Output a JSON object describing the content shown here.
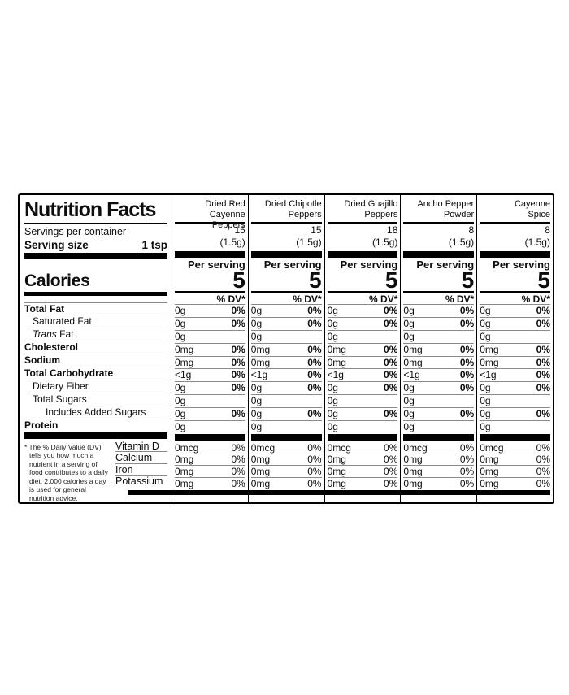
{
  "panel": {
    "title": "Nutrition Facts",
    "servings_per_container_label": "Servings per container",
    "serving_size_label": "Serving size",
    "serving_size_value": "1 tsp",
    "calories_label": "Calories",
    "per_serving_label": "Per serving",
    "percent_dv_header": "% DV*",
    "footnote": "* The % Daily Value (DV) tells you how much a nutrient in a serving of food contributes to a daily diet. 2,000 calories a day is used for general nutrition advice.",
    "colors": {
      "ink": "#0d0d0d",
      "hairline": "#8a8a8a",
      "background": "#ffffff"
    }
  },
  "nutrient_rows": [
    {
      "label": "Total Fat",
      "bold": true,
      "indent": 0,
      "rule_indent": 0
    },
    {
      "label": "Saturated Fat",
      "bold": false,
      "indent": 10,
      "rule_indent": 9
    },
    {
      "label_italic": "Trans",
      "label": " Fat",
      "bold": false,
      "indent": 10,
      "rule_indent": 9
    },
    {
      "label": "Cholesterol",
      "bold": true,
      "indent": 0,
      "rule_indent": 0
    },
    {
      "label": "Sodium",
      "bold": true,
      "indent": 0,
      "rule_indent": 0
    },
    {
      "label": "Total Carbohydrate",
      "bold": true,
      "indent": 0,
      "rule_indent": 0
    },
    {
      "label": "Dietary Fiber",
      "bold": false,
      "indent": 10,
      "rule_indent": 9
    },
    {
      "label": "Total Sugars",
      "bold": false,
      "indent": 10,
      "rule_indent": 9
    },
    {
      "label": "Includes Added Sugars",
      "bold": false,
      "indent": 26,
      "rule_indent": 26
    },
    {
      "label": "Protein",
      "bold": true,
      "indent": 0,
      "rule_indent": 0
    }
  ],
  "vitamin_labels": [
    "Vitamin D",
    "Calcium",
    "Iron",
    "Potassium"
  ],
  "products": [
    {
      "name": "Dried Red\nCayenne Peppers",
      "servings": "15",
      "serving_weight": "(1.5g)",
      "calories": "5",
      "values": [
        {
          "amount": "0g",
          "dv": "0%"
        },
        {
          "amount": "0g",
          "dv": "0%"
        },
        {
          "amount": "0g",
          "dv": null
        },
        {
          "amount": "0mg",
          "dv": "0%"
        },
        {
          "amount": "0mg",
          "dv": "0%"
        },
        {
          "amount": "<1g",
          "dv": "0%"
        },
        {
          "amount": "0g",
          "dv": "0%"
        },
        {
          "amount": "0g",
          "dv": null
        },
        {
          "amount": "0g",
          "dv": "0%"
        },
        {
          "amount": "0g",
          "dv": null
        }
      ],
      "vitamins": [
        {
          "amount": "0mcg",
          "dv": "0%"
        },
        {
          "amount": "0mg",
          "dv": "0%"
        },
        {
          "amount": "0mg",
          "dv": "0%"
        },
        {
          "amount": "0mg",
          "dv": "0%"
        }
      ]
    },
    {
      "name": "Dried Chipotle\nPeppers",
      "servings": "15",
      "serving_weight": "(1.5g)",
      "calories": "5",
      "values": [
        {
          "amount": "0g",
          "dv": "0%"
        },
        {
          "amount": "0g",
          "dv": "0%"
        },
        {
          "amount": "0g",
          "dv": null
        },
        {
          "amount": "0mg",
          "dv": "0%"
        },
        {
          "amount": "0mg",
          "dv": "0%"
        },
        {
          "amount": "<1g",
          "dv": "0%"
        },
        {
          "amount": "0g",
          "dv": "0%"
        },
        {
          "amount": "0g",
          "dv": null
        },
        {
          "amount": "0g",
          "dv": "0%"
        },
        {
          "amount": "0g",
          "dv": null
        }
      ],
      "vitamins": [
        {
          "amount": "0mcg",
          "dv": "0%"
        },
        {
          "amount": "0mg",
          "dv": "0%"
        },
        {
          "amount": "0mg",
          "dv": "0%"
        },
        {
          "amount": "0mg",
          "dv": "0%"
        }
      ]
    },
    {
      "name": "Dried Guajillo\nPeppers",
      "servings": "18",
      "serving_weight": "(1.5g)",
      "calories": "5",
      "values": [
        {
          "amount": "0g",
          "dv": "0%"
        },
        {
          "amount": "0g",
          "dv": "0%"
        },
        {
          "amount": "0g",
          "dv": null
        },
        {
          "amount": "0mg",
          "dv": "0%"
        },
        {
          "amount": "0mg",
          "dv": "0%"
        },
        {
          "amount": "<1g",
          "dv": "0%"
        },
        {
          "amount": "0g",
          "dv": "0%"
        },
        {
          "amount": "0g",
          "dv": null
        },
        {
          "amount": "0g",
          "dv": "0%"
        },
        {
          "amount": "0g",
          "dv": null
        }
      ],
      "vitamins": [
        {
          "amount": "0mcg",
          "dv": "0%"
        },
        {
          "amount": "0mg",
          "dv": "0%"
        },
        {
          "amount": "0mg",
          "dv": "0%"
        },
        {
          "amount": "0mg",
          "dv": "0%"
        }
      ]
    },
    {
      "name": "Ancho Pepper\nPowder",
      "servings": "8",
      "serving_weight": "(1.5g)",
      "calories": "5",
      "values": [
        {
          "amount": "0g",
          "dv": "0%"
        },
        {
          "amount": "0g",
          "dv": "0%"
        },
        {
          "amount": "0g",
          "dv": null
        },
        {
          "amount": "0mg",
          "dv": "0%"
        },
        {
          "amount": "0mg",
          "dv": "0%"
        },
        {
          "amount": "<1g",
          "dv": "0%"
        },
        {
          "amount": "0g",
          "dv": "0%"
        },
        {
          "amount": "0g",
          "dv": null
        },
        {
          "amount": "0g",
          "dv": "0%"
        },
        {
          "amount": "0g",
          "dv": null
        }
      ],
      "vitamins": [
        {
          "amount": "0mcg",
          "dv": "0%"
        },
        {
          "amount": "0mg",
          "dv": "0%"
        },
        {
          "amount": "0mg",
          "dv": "0%"
        },
        {
          "amount": "0mg",
          "dv": "0%"
        }
      ]
    },
    {
      "name": "Cayenne\nSpice",
      "servings": "8",
      "serving_weight": "(1.5g)",
      "calories": "5",
      "values": [
        {
          "amount": "0g",
          "dv": "0%"
        },
        {
          "amount": "0g",
          "dv": "0%"
        },
        {
          "amount": "0g",
          "dv": null
        },
        {
          "amount": "0mg",
          "dv": "0%"
        },
        {
          "amount": "0mg",
          "dv": "0%"
        },
        {
          "amount": "<1g",
          "dv": "0%"
        },
        {
          "amount": "0g",
          "dv": "0%"
        },
        {
          "amount": "0g",
          "dv": null
        },
        {
          "amount": "0g",
          "dv": "0%"
        },
        {
          "amount": "0g",
          "dv": null
        }
      ],
      "vitamins": [
        {
          "amount": "0mcg",
          "dv": "0%"
        },
        {
          "amount": "0mg",
          "dv": "0%"
        },
        {
          "amount": "0mg",
          "dv": "0%"
        },
        {
          "amount": "0mg",
          "dv": "0%"
        }
      ]
    }
  ]
}
